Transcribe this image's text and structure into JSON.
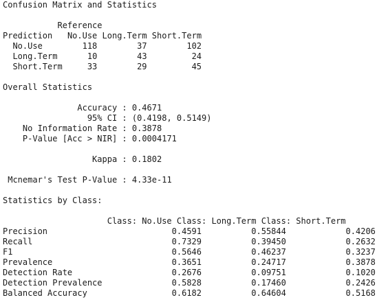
{
  "header": {
    "title": "Confusion Matrix and Statistics"
  },
  "confusion_matrix": {
    "reference_label": "Reference",
    "prediction_label": "Prediction",
    "columns": [
      "No.Use",
      "Long.Term",
      "Short.Term"
    ],
    "rows": [
      {
        "label": "No.Use",
        "values": [
          "118",
          "37",
          "102"
        ]
      },
      {
        "label": "Long.Term",
        "values": [
          "10",
          "43",
          "24"
        ]
      },
      {
        "label": "Short.Term",
        "values": [
          "33",
          "29",
          "45"
        ]
      }
    ]
  },
  "overall": {
    "title": "Overall Statistics",
    "accuracy_label": "Accuracy",
    "accuracy": "0.4671",
    "ci_label": "95% CI",
    "ci": "(0.4198, 0.5149)",
    "nir_label": "No Information Rate",
    "nir": "0.3878",
    "pvalue_label": "P-Value [Acc > NIR]",
    "pvalue": "0.0004171",
    "kappa_label": "Kappa",
    "kappa": "0.1802",
    "mcnemar_label": "Mcnemar's Test P-Value",
    "mcnemar": "4.33e-11"
  },
  "by_class": {
    "title": "Statistics by Class:",
    "columns": [
      "Class: No.Use",
      "Class: Long.Term",
      "Class: Short.Term"
    ],
    "rows": [
      {
        "label": "Precision",
        "values": [
          "0.4591",
          "0.55844",
          "0.4206"
        ]
      },
      {
        "label": "Recall",
        "values": [
          "0.7329",
          "0.39450",
          "0.2632"
        ]
      },
      {
        "label": "F1",
        "values": [
          "0.5646",
          "0.46237",
          "0.3237"
        ]
      },
      {
        "label": "Prevalence",
        "values": [
          "0.3651",
          "0.24717",
          "0.3878"
        ]
      },
      {
        "label": "Detection Rate",
        "values": [
          "0.2676",
          "0.09751",
          "0.1020"
        ]
      },
      {
        "label": "Detection Prevalence",
        "values": [
          "0.5828",
          "0.17460",
          "0.2426"
        ]
      },
      {
        "label": "Balanced Accuracy",
        "values": [
          "0.6182",
          "0.64604",
          "0.5168"
        ]
      }
    ]
  }
}
